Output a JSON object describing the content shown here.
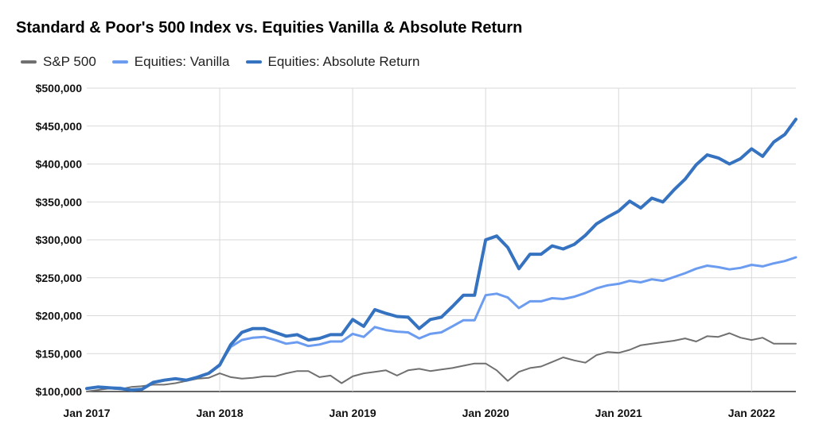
{
  "chart_data": {
    "type": "line",
    "title": "Standard & Poor's 500 Index vs. Equities Vanilla & Absolute Return",
    "xlabel": "",
    "ylabel": "",
    "ylim": [
      100000,
      500000
    ],
    "yticks": [
      "$500,000",
      "$450,000",
      "$400,000",
      "$350,000",
      "$300,000",
      "$250,000",
      "$200,000",
      "$150,000",
      "$100,000"
    ],
    "ytick_values": [
      500000,
      450000,
      400000,
      350000,
      300000,
      250000,
      200000,
      150000,
      100000
    ],
    "xticks": [
      "Jan 2017",
      "Jan 2018",
      "Jan 2019",
      "Jan 2020",
      "Jan 2021",
      "Jan 2022"
    ],
    "x": [
      "2017-01",
      "2017-02",
      "2017-03",
      "2017-04",
      "2017-05",
      "2017-06",
      "2017-07",
      "2017-08",
      "2017-09",
      "2017-10",
      "2017-11",
      "2017-12",
      "2018-01",
      "2018-02",
      "2018-03",
      "2018-04",
      "2018-05",
      "2018-06",
      "2018-07",
      "2018-08",
      "2018-09",
      "2018-10",
      "2018-11",
      "2018-12",
      "2019-01",
      "2019-02",
      "2019-03",
      "2019-04",
      "2019-05",
      "2019-06",
      "2019-07",
      "2019-08",
      "2019-09",
      "2019-10",
      "2019-11",
      "2019-12",
      "2020-01",
      "2020-02",
      "2020-03",
      "2020-04",
      "2020-05",
      "2020-06",
      "2020-07",
      "2020-08",
      "2020-09",
      "2020-10",
      "2020-11",
      "2020-12",
      "2021-01",
      "2021-02",
      "2021-03",
      "2021-04",
      "2021-05",
      "2021-06",
      "2021-07",
      "2021-08",
      "2021-09",
      "2021-10",
      "2021-11",
      "2021-12",
      "2022-01",
      "2022-02",
      "2022-03",
      "2022-04",
      "2022-05"
    ],
    "grid": true,
    "legend": "top-left",
    "series": [
      {
        "name": "S&P 500",
        "color": "#707070",
        "values": [
          100000,
          102000,
          104000,
          103000,
          106000,
          107000,
          109000,
          109000,
          111000,
          114000,
          117000,
          118000,
          124000,
          119000,
          117000,
          118000,
          120000,
          120000,
          124000,
          127000,
          127000,
          119000,
          121000,
          111000,
          120000,
          124000,
          126000,
          128000,
          121000,
          128000,
          130000,
          127000,
          129000,
          131000,
          134000,
          137000,
          137000,
          128000,
          114000,
          126000,
          131000,
          133000,
          139000,
          145000,
          141000,
          138000,
          148000,
          152000,
          151000,
          155000,
          161000,
          163000,
          165000,
          167000,
          170000,
          166000,
          173000,
          172000,
          177000,
          171000,
          168000,
          171000,
          163000,
          163000,
          163000
        ]
      },
      {
        "name": "Equities: Vanilla",
        "color": "#6b9cf0",
        "values": [
          104000,
          106000,
          105000,
          105000,
          102000,
          103000,
          112000,
          115000,
          117000,
          115000,
          119000,
          124000,
          136000,
          159000,
          168000,
          171000,
          172000,
          168000,
          163000,
          165000,
          160000,
          162000,
          166000,
          166000,
          176000,
          172000,
          185000,
          181000,
          179000,
          178000,
          170000,
          176000,
          178000,
          186000,
          194000,
          194000,
          227000,
          229000,
          224000,
          210000,
          219000,
          219000,
          223000,
          222000,
          225000,
          230000,
          236000,
          240000,
          242000,
          246000,
          244000,
          248000,
          246000,
          251000,
          256000,
          262000,
          266000,
          264000,
          261000,
          263000,
          267000,
          265000,
          269000,
          272000,
          277000
        ]
      },
      {
        "name": "Equities: Absolute Return",
        "color": "#3572c0",
        "values": [
          104000,
          106000,
          105000,
          104000,
          102000,
          103000,
          112000,
          115000,
          117000,
          115000,
          119000,
          124000,
          135000,
          162000,
          178000,
          183000,
          183000,
          178000,
          173000,
          175000,
          168000,
          170000,
          175000,
          175000,
          195000,
          186000,
          208000,
          203000,
          199000,
          198000,
          183000,
          195000,
          198000,
          212000,
          227000,
          227000,
          300000,
          305000,
          290000,
          262000,
          281000,
          281000,
          292000,
          288000,
          294000,
          306000,
          321000,
          330000,
          338000,
          351000,
          342000,
          355000,
          350000,
          366000,
          380000,
          399000,
          412000,
          408000,
          400000,
          407000,
          420000,
          410000,
          429000,
          439000,
          459000
        ]
      }
    ]
  }
}
